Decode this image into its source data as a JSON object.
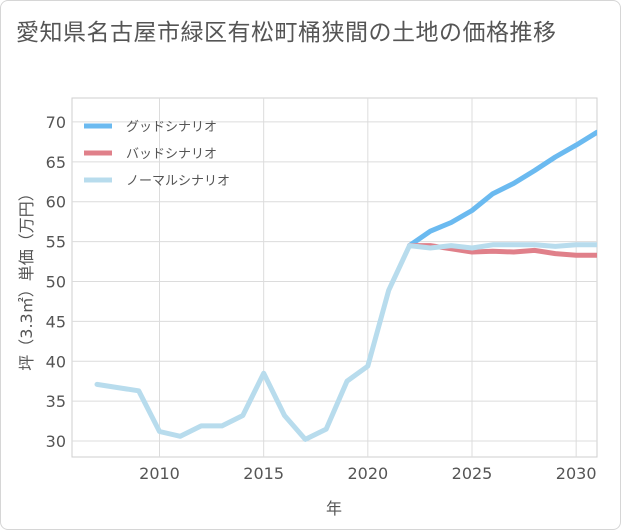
{
  "chart_data": {
    "type": "line",
    "title": "愛知県名古屋市緑区有松町桶狭間の土地の価格推移",
    "xlabel": "年",
    "ylabel": "坪（3.3㎡）単価（万円）",
    "xlim": [
      2005.8,
      2031
    ],
    "ylim": [
      28,
      73
    ],
    "xticks": [
      2010,
      2015,
      2020,
      2025,
      2030
    ],
    "yticks": [
      30,
      35,
      40,
      45,
      50,
      55,
      60,
      65,
      70
    ],
    "grid": true,
    "legend_position": "top-left",
    "colors": {
      "good": "#6bbaf0",
      "bad": "#e0808a",
      "normal": "#b8dced"
    },
    "series": [
      {
        "key": "good",
        "name": "グッドシナリオ",
        "x": [
          2022,
          2023,
          2024,
          2025,
          2026,
          2027,
          2028,
          2029,
          2030,
          2031
        ],
        "values": [
          54.5,
          56.3,
          57.4,
          58.9,
          61.0,
          62.3,
          63.9,
          65.6,
          67.1,
          68.7
        ]
      },
      {
        "key": "bad",
        "name": "バッドシナリオ",
        "x": [
          2022,
          2023,
          2024,
          2025,
          2026,
          2027,
          2028,
          2029,
          2030,
          2031
        ],
        "values": [
          54.5,
          54.5,
          54.1,
          53.7,
          53.8,
          53.7,
          53.9,
          53.5,
          53.3,
          53.3
        ]
      },
      {
        "key": "normal",
        "name": "ノーマルシナリオ",
        "x": [
          2007,
          2008,
          2009,
          2010,
          2011,
          2012,
          2013,
          2014,
          2015,
          2016,
          2017,
          2018,
          2019,
          2020,
          2021,
          2022,
          2023,
          2024,
          2025,
          2026,
          2027,
          2028,
          2029,
          2030,
          2031
        ],
        "values": [
          37.1,
          36.7,
          36.3,
          31.2,
          30.6,
          31.9,
          31.9,
          33.2,
          38.5,
          33.2,
          30.2,
          31.5,
          37.5,
          39.4,
          48.9,
          54.5,
          54.2,
          54.5,
          54.2,
          54.6,
          54.6,
          54.6,
          54.4,
          54.6,
          54.6
        ]
      }
    ]
  }
}
